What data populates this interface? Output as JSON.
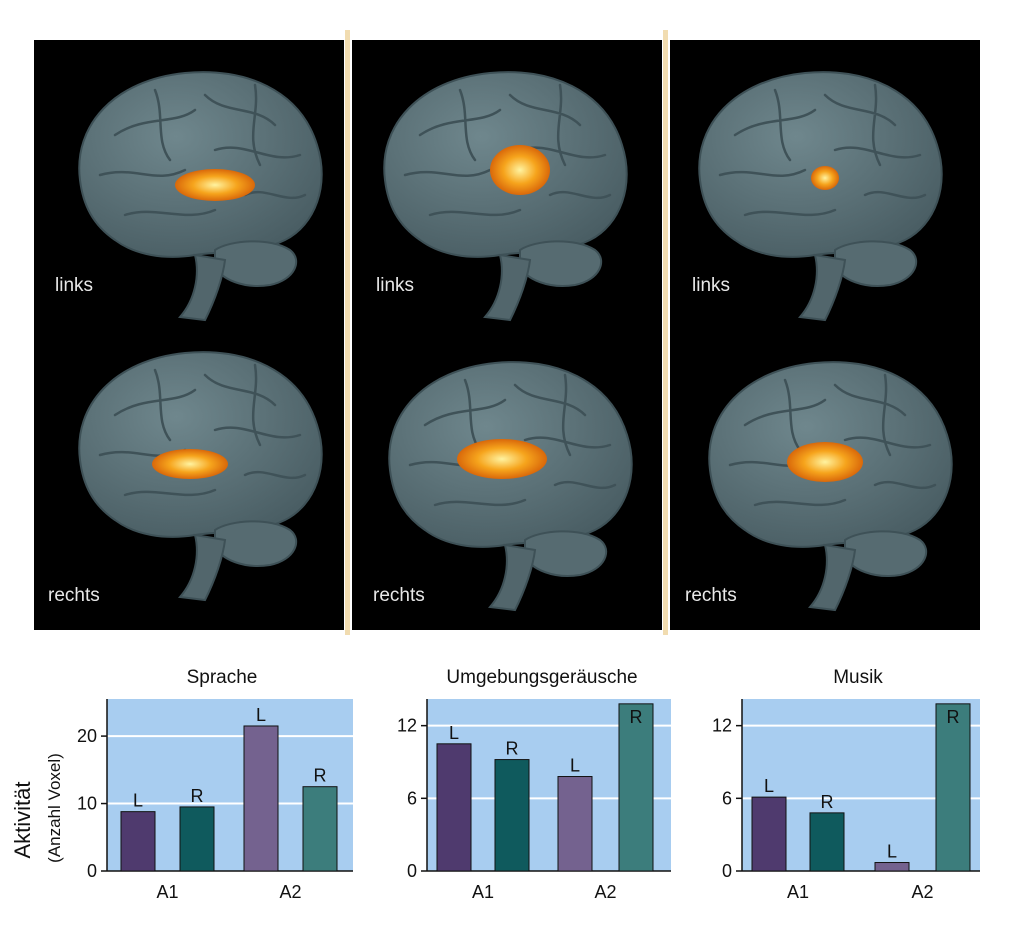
{
  "brain_panels": [
    {
      "top_label": "links",
      "bottom_label": "rechts"
    },
    {
      "top_label": "links",
      "bottom_label": "rechts"
    },
    {
      "top_label": "links",
      "bottom_label": "rechts"
    }
  ],
  "colors": {
    "background": "#000000",
    "separator": "#f1dcb0",
    "brain": "#5b7178",
    "activation": "#f6a41c",
    "plot_bg": "#a8cdf0",
    "gridline": "#ffffff",
    "bar_a1_l": "#4f3a6e",
    "bar_a1_r": "#0f5a5d",
    "bar_a2_l": "#74628f",
    "bar_a2_r": "#3c7d7c"
  },
  "y_axis_label": {
    "main": "Aktivität",
    "sub": "(Anzahl Voxel)"
  },
  "chart_data": [
    {
      "type": "bar",
      "title": "Sprache",
      "groups": [
        "A1",
        "A2"
      ],
      "bar_labels": [
        "L",
        "R",
        "L",
        "R"
      ],
      "values": [
        8.8,
        9.5,
        21.5,
        12.5
      ],
      "ylim": [
        0,
        25.5
      ],
      "yticks": [
        0,
        10,
        20
      ],
      "grid": true
    },
    {
      "type": "bar",
      "title": "Umgebungsgeräusche",
      "groups": [
        "A1",
        "A2"
      ],
      "bar_labels": [
        "L",
        "R",
        "L",
        "R"
      ],
      "values": [
        10.5,
        9.2,
        7.8,
        13.8
      ],
      "ylim": [
        0,
        14.2
      ],
      "yticks": [
        0,
        6,
        12
      ],
      "grid": true
    },
    {
      "type": "bar",
      "title": "Musik",
      "groups": [
        "A1",
        "A2"
      ],
      "bar_labels": [
        "L",
        "R",
        "L",
        "R"
      ],
      "values": [
        6.1,
        4.8,
        0.7,
        13.8
      ],
      "ylim": [
        0,
        14.2
      ],
      "yticks": [
        0,
        6,
        12
      ],
      "grid": true
    }
  ]
}
